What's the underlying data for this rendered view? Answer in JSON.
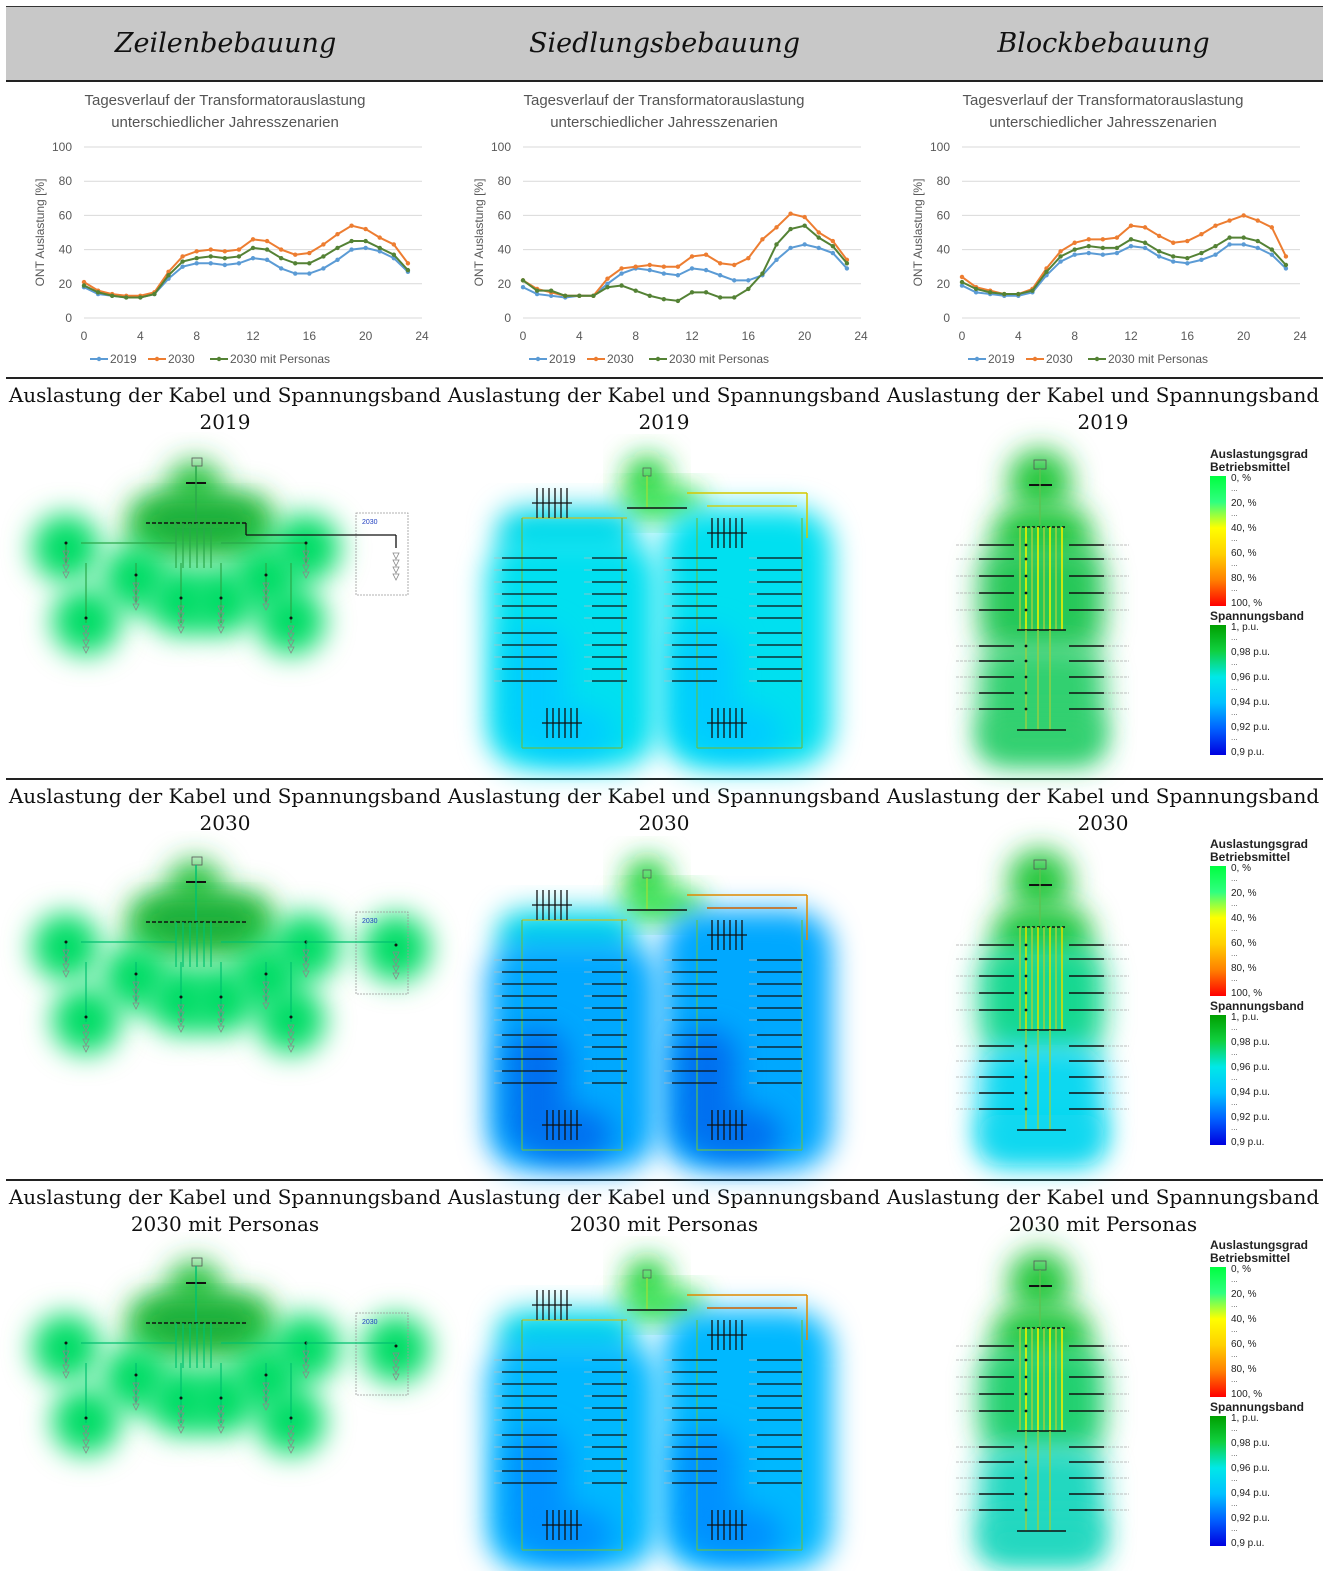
{
  "header": {
    "columns": [
      "Zeilenbebauung",
      "Siedlungsbebauung",
      "Blockbebauung"
    ]
  },
  "charts": {
    "title_line1": "Tagesverlauf der Transformatorauslastung",
    "title_line2": "unterschiedlicher Jahresszenarien",
    "ylabel": "ONT Auslastung [%]",
    "legend": [
      "2019",
      "2030",
      "2030 mit Personas"
    ],
    "colors": [
      "#5b9bd5",
      "#ed7d31",
      "#548235"
    ]
  },
  "chart_data": [
    {
      "type": "line",
      "title": "Tagesverlauf der Transformatorauslastung unterschiedlicher Jahresszenarien",
      "xlabel": "",
      "ylabel": "ONT Auslastung [%]",
      "xlim": [
        0,
        24
      ],
      "ylim": [
        0,
        100
      ],
      "xticks": [
        0,
        4,
        8,
        12,
        16,
        20,
        24
      ],
      "yticks": [
        0,
        20,
        40,
        60,
        80,
        100
      ],
      "x": [
        0,
        1,
        2,
        3,
        4,
        5,
        6,
        7,
        8,
        9,
        10,
        11,
        12,
        13,
        14,
        15,
        16,
        17,
        18,
        19,
        20,
        21,
        22,
        23
      ],
      "series": [
        {
          "name": "2019",
          "values": [
            18,
            14,
            13,
            12,
            12,
            14,
            23,
            30,
            32,
            32,
            31,
            32,
            35,
            34,
            29,
            26,
            26,
            29,
            34,
            40,
            41,
            39,
            35,
            27
          ]
        },
        {
          "name": "2030",
          "values": [
            21,
            16,
            14,
            13,
            13,
            15,
            27,
            36,
            39,
            40,
            39,
            40,
            46,
            45,
            40,
            37,
            38,
            43,
            49,
            54,
            52,
            47,
            43,
            32
          ]
        },
        {
          "name": "2030 mit Personas",
          "values": [
            19,
            15,
            13,
            12,
            12,
            14,
            25,
            33,
            35,
            36,
            35,
            36,
            41,
            40,
            35,
            32,
            32,
            36,
            41,
            45,
            45,
            41,
            37,
            28
          ]
        }
      ],
      "grid": true,
      "legend_position": "bottom"
    },
    {
      "type": "line",
      "title": "Tagesverlauf der Transformatorauslastung unterschiedlicher Jahresszenarien",
      "xlabel": "",
      "ylabel": "ONT Auslastung [%]",
      "xlim": [
        0,
        24
      ],
      "ylim": [
        0,
        100
      ],
      "xticks": [
        0,
        4,
        8,
        12,
        16,
        20,
        24
      ],
      "yticks": [
        0,
        20,
        40,
        60,
        80,
        100
      ],
      "x": [
        0,
        1,
        2,
        3,
        4,
        5,
        6,
        7,
        8,
        9,
        10,
        11,
        12,
        13,
        14,
        15,
        16,
        17,
        18,
        19,
        20,
        21,
        22,
        23
      ],
      "series": [
        {
          "name": "2019",
          "values": [
            18,
            14,
            13,
            12,
            13,
            13,
            20,
            26,
            29,
            28,
            26,
            25,
            29,
            28,
            25,
            22,
            22,
            25,
            34,
            41,
            43,
            41,
            38,
            29
          ]
        },
        {
          "name": "2030",
          "values": [
            22,
            17,
            15,
            13,
            13,
            13,
            23,
            29,
            30,
            31,
            30,
            30,
            36,
            37,
            32,
            31,
            35,
            46,
            53,
            61,
            59,
            50,
            45,
            34
          ]
        },
        {
          "name": "2030 mit Personas",
          "values": [
            22,
            16,
            16,
            13,
            13,
            13,
            18,
            19,
            16,
            13,
            11,
            10,
            15,
            15,
            12,
            12,
            17,
            26,
            43,
            52,
            54,
            47,
            42,
            32
          ]
        }
      ],
      "grid": true,
      "legend_position": "bottom"
    },
    {
      "type": "line",
      "title": "Tagesverlauf der Transformatorauslastung unterschiedlicher Jahresszenarien",
      "xlabel": "",
      "ylabel": "ONT Auslastung [%]",
      "xlim": [
        0,
        24
      ],
      "ylim": [
        0,
        100
      ],
      "xticks": [
        0,
        4,
        8,
        12,
        16,
        20,
        24
      ],
      "yticks": [
        0,
        20,
        40,
        60,
        80,
        100
      ],
      "x": [
        0,
        1,
        2,
        3,
        4,
        5,
        6,
        7,
        8,
        9,
        10,
        11,
        12,
        13,
        14,
        15,
        16,
        17,
        18,
        19,
        20,
        21,
        22,
        23
      ],
      "series": [
        {
          "name": "2019",
          "values": [
            19,
            15,
            14,
            13,
            13,
            15,
            25,
            33,
            37,
            38,
            37,
            38,
            42,
            41,
            36,
            33,
            32,
            34,
            37,
            43,
            43,
            41,
            37,
            29
          ]
        },
        {
          "name": "2030",
          "values": [
            24,
            18,
            16,
            14,
            14,
            17,
            29,
            39,
            44,
            46,
            46,
            47,
            54,
            53,
            48,
            44,
            45,
            49,
            54,
            57,
            60,
            57,
            53,
            36
          ]
        },
        {
          "name": "2030 mit Personas",
          "values": [
            21,
            17,
            15,
            14,
            14,
            16,
            27,
            36,
            40,
            42,
            41,
            41,
            46,
            44,
            39,
            36,
            35,
            38,
            42,
            47,
            47,
            45,
            40,
            31
          ]
        }
      ],
      "grid": true,
      "legend_position": "bottom"
    }
  ],
  "sections": [
    {
      "line1": "Auslastung der Kabel und Spannungsband",
      "line2": "2019"
    },
    {
      "line1": "Auslastung der Kabel und Spannungsband",
      "line2": "2030"
    },
    {
      "line1": "Auslastung der Kabel und Spannungsband",
      "line2": "2030 mit Personas"
    }
  ],
  "box_label": "2030",
  "legend": {
    "load_title_1": "Auslastungsgrad",
    "load_title_2": "Betriebsmittel",
    "load_labels": [
      "0, %",
      "20, %",
      "40, %",
      "60, %",
      "80, %",
      "100, %"
    ],
    "voltage_title": "Spannungsband",
    "voltage_labels": [
      "1, p.u.",
      "0,98 p.u.",
      "0,96 p.u.",
      "0,94 p.u.",
      "0,92 p.u.",
      "0,9 p.u."
    ],
    "ellipsis": "..."
  }
}
